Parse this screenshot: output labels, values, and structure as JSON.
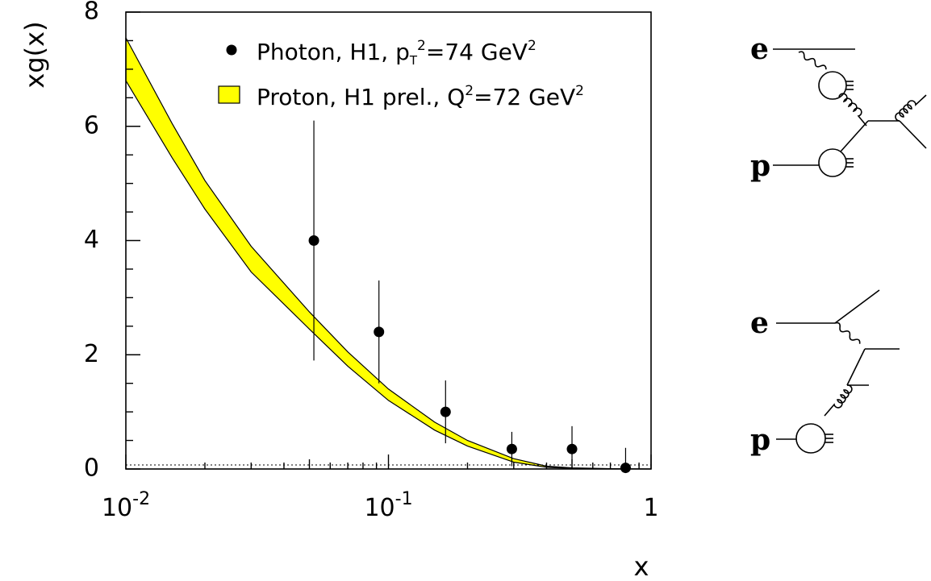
{
  "chart_data": {
    "type": "scatter",
    "xscale": "log",
    "xlim": [
      0.01,
      1
    ],
    "ylim": [
      0,
      8
    ],
    "ylabel": "xg(x)",
    "xlabel": "x",
    "x_tick_labels": [
      {
        "base": "10",
        "exp": "-2"
      },
      {
        "base": "10",
        "exp": "-1"
      },
      {
        "base": "1",
        "exp": ""
      }
    ],
    "y_tick_labels": [
      "0",
      "2",
      "4",
      "6",
      "8"
    ],
    "series": [
      {
        "name": "Photon, H1, p_T^2=74 GeV^2",
        "kind": "points-with-errors",
        "color": "#000000",
        "points": [
          {
            "x": 0.052,
            "y": 4.0,
            "ylow": 1.9,
            "yhigh": 6.1
          },
          {
            "x": 0.092,
            "y": 2.4,
            "ylow": 1.5,
            "yhigh": 3.3
          },
          {
            "x": 0.165,
            "y": 1.0,
            "ylow": 0.45,
            "yhigh": 1.55
          },
          {
            "x": 0.295,
            "y": 0.35,
            "ylow": 0.05,
            "yhigh": 0.65
          },
          {
            "x": 0.5,
            "y": 0.35,
            "ylow": 0.0,
            "yhigh": 0.75
          },
          {
            "x": 0.8,
            "y": 0.02,
            "ylow": 0.0,
            "yhigh": 0.37
          }
        ]
      },
      {
        "name": "Proton, H1 prel., Q^2=72 GeV^2",
        "kind": "band",
        "color": "#ffff00",
        "x": [
          0.01,
          0.015,
          0.02,
          0.03,
          0.05,
          0.07,
          0.1,
          0.15,
          0.2,
          0.3,
          0.4,
          0.5,
          0.7,
          1.0
        ],
        "upper": [
          7.55,
          6.05,
          5.05,
          3.9,
          2.75,
          2.05,
          1.4,
          0.82,
          0.5,
          0.18,
          0.05,
          0.02,
          0.005,
          0.0
        ],
        "lower": [
          6.8,
          5.45,
          4.55,
          3.45,
          2.45,
          1.8,
          1.2,
          0.68,
          0.4,
          0.12,
          0.03,
          0.01,
          0.003,
          0.0
        ]
      }
    ],
    "legend": {
      "placement": "top-right",
      "entries": [
        {
          "symbol": "dot",
          "parts": [
            {
              "text": "Photon, H1, p",
              "style": "normal"
            },
            {
              "text": "T",
              "style": "sub"
            },
            {
              "text": "2",
              "style": "sup"
            },
            {
              "text": "=74 GeV",
              "style": "normal"
            },
            {
              "text": "2",
              "style": "sup"
            }
          ]
        },
        {
          "symbol": "box",
          "parts": [
            {
              "text": "Proton, H1 prel., Q",
              "style": "normal"
            },
            {
              "text": "2",
              "style": "sup"
            },
            {
              "text": "=72 GeV",
              "style": "normal"
            },
            {
              "text": "2",
              "style": "sup"
            }
          ]
        }
      ]
    },
    "zero_line": "dotted"
  },
  "diagrams": [
    {
      "name": "resolved-photon-diagram",
      "labels": {
        "beam_electron": "e",
        "beam_proton": "p"
      }
    },
    {
      "name": "direct-photon-diagram",
      "labels": {
        "beam_electron": "e",
        "beam_proton": "p"
      }
    }
  ]
}
